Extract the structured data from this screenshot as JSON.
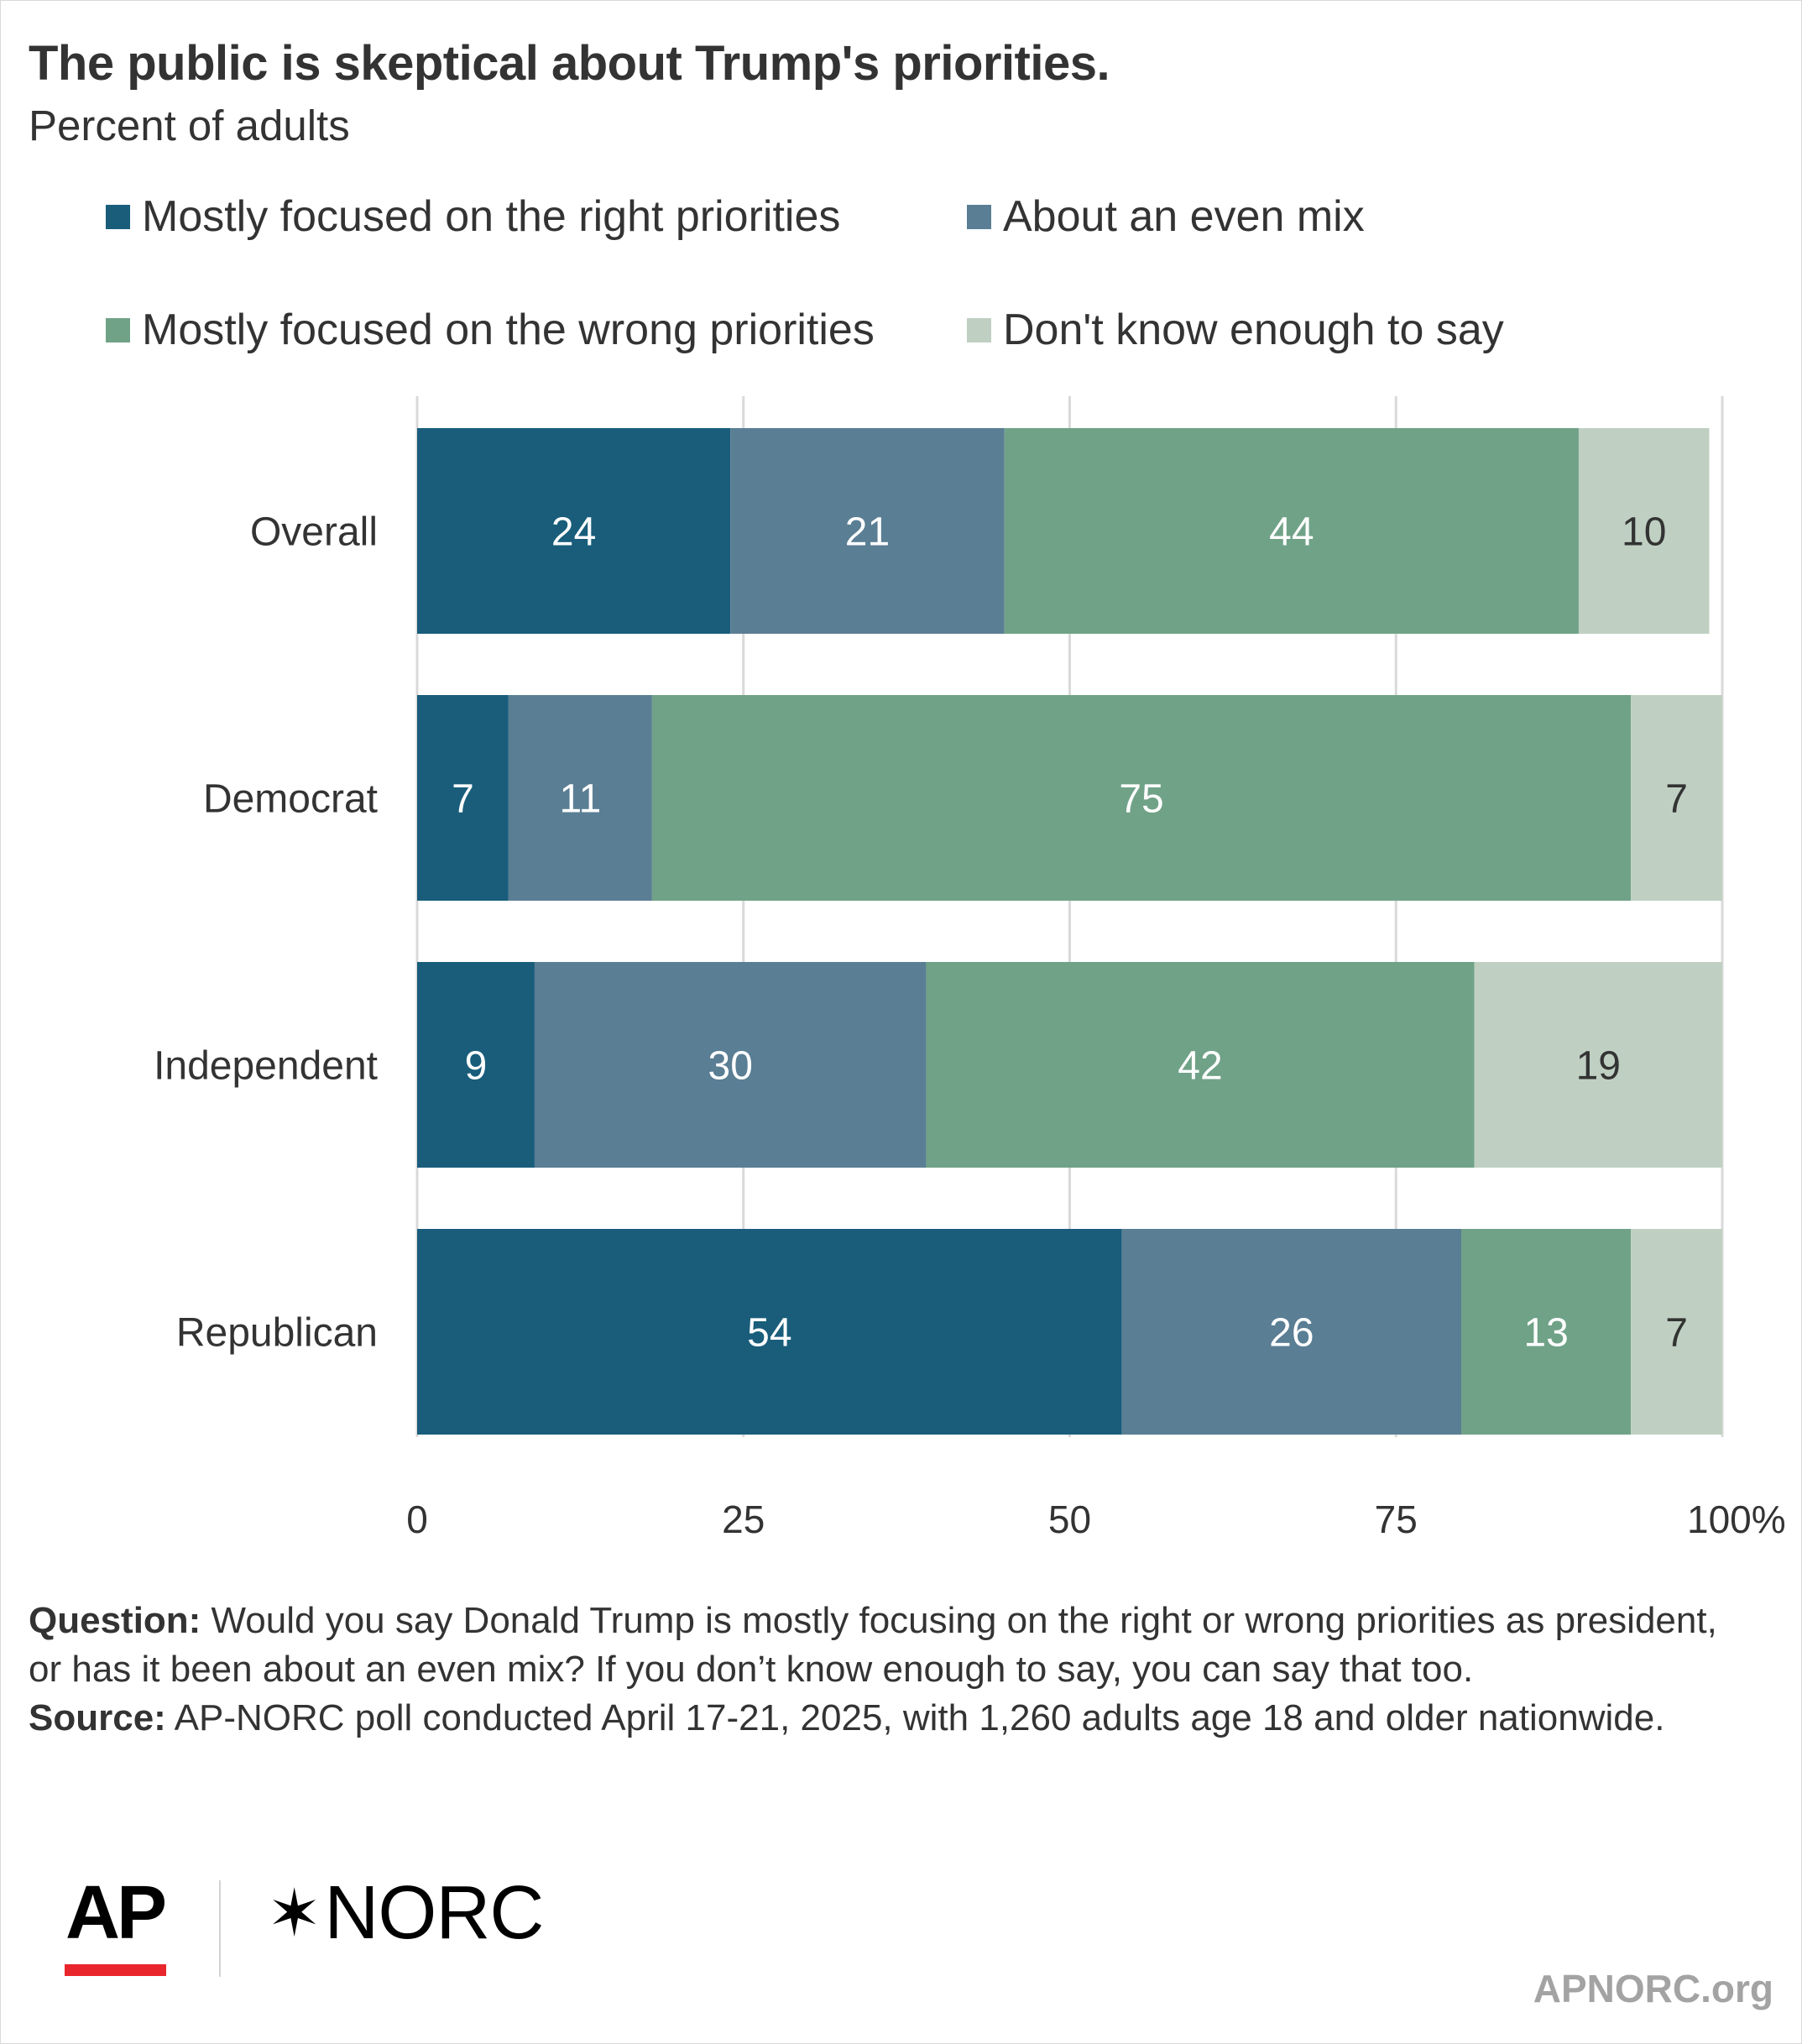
{
  "title": "The public is skeptical about Trump's priorities.",
  "subtitle": "Percent of adults",
  "colors": {
    "right": "#195d7b",
    "even": "#5a7e94",
    "wrong": "#70a287",
    "dontknow": "#bfd0c2",
    "grid": "#d9d9d9",
    "text": "#333333"
  },
  "chart_data": {
    "type": "bar",
    "orientation": "horizontal",
    "stacked": true,
    "categories": [
      "Overall",
      "Democrat",
      "Independent",
      "Republican"
    ],
    "series": [
      {
        "name": "Mostly focused on the right priorities",
        "color": "#195d7b",
        "label_color": "#ffffff",
        "values": [
          24,
          7,
          9,
          54
        ]
      },
      {
        "name": "About an even mix",
        "color": "#5a7e94",
        "label_color": "#ffffff",
        "values": [
          21,
          11,
          30,
          26
        ]
      },
      {
        "name": "Mostly focused on the wrong priorities",
        "color": "#70a287",
        "label_color": "#ffffff",
        "values": [
          44,
          75,
          42,
          13
        ]
      },
      {
        "name": "Don't know enough to say",
        "color": "#bfd0c2",
        "label_color": "#333333",
        "values": [
          10,
          7,
          19,
          7
        ]
      }
    ],
    "xlim": [
      0,
      100
    ],
    "xticks": [
      "0",
      "25",
      "50",
      "75",
      "100%"
    ],
    "xtick_values": [
      0,
      25,
      50,
      75,
      100
    ],
    "grid": true,
    "legend_position": "top"
  },
  "footnote": {
    "question_label": "Question:",
    "question_text": " Would you say Donald Trump is mostly focusing on the right or wrong priorities as president, or has it been about an even mix? If you don’t know enough to say, you can say that too.",
    "source_label": "Source:",
    "source_text": " AP-NORC poll conducted April 17-21, 2025, with 1,260 adults age 18 and older nationwide."
  },
  "logos": {
    "ap": "AP",
    "norc_star": "✶",
    "norc": "NORC"
  },
  "site": "APNORC.org"
}
